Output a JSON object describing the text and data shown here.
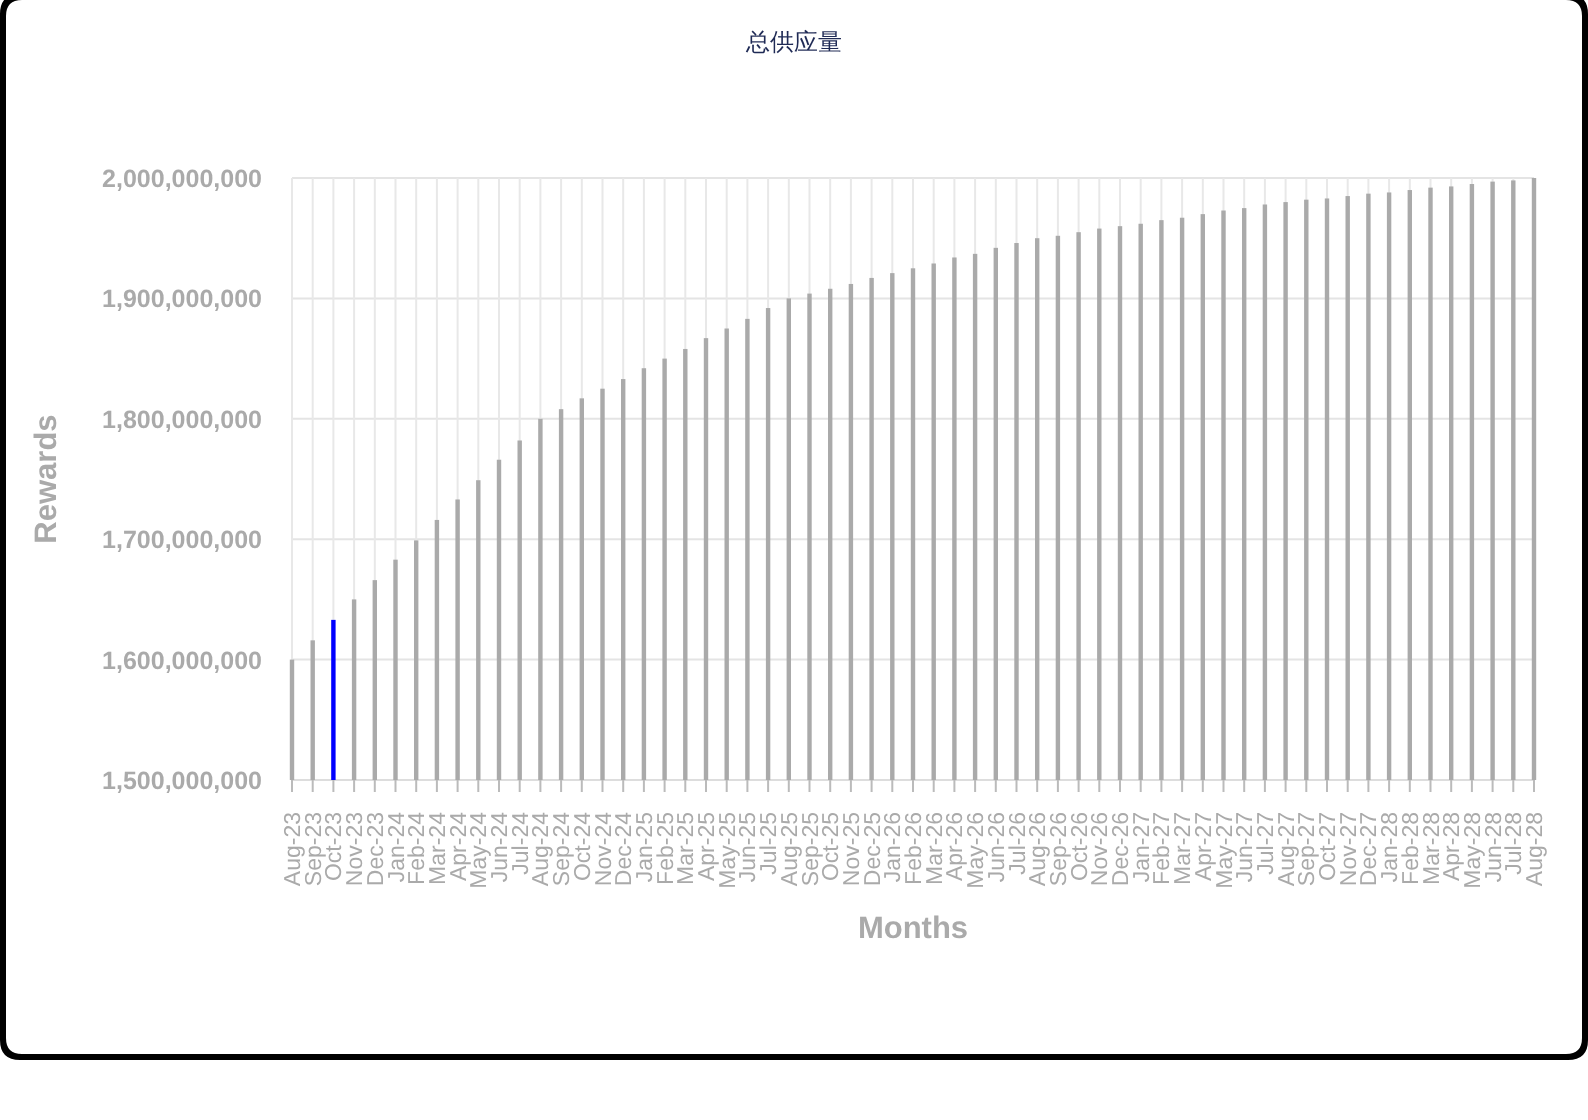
{
  "chart_data": {
    "type": "bar",
    "title": "总供应量",
    "xlabel": "Months",
    "ylabel": "Rewards",
    "categories": [
      "Aug-23",
      "Sep-23",
      "Oct-23",
      "Nov-23",
      "Dec-23",
      "Jan-24",
      "Feb-24",
      "Mar-24",
      "Apr-24",
      "May-24",
      "Jun-24",
      "Jul-24",
      "Aug-24",
      "Sep-24",
      "Oct-24",
      "Nov-24",
      "Dec-24",
      "Jan-25",
      "Feb-25",
      "Mar-25",
      "Apr-25",
      "May-25",
      "Jun-25",
      "Jul-25",
      "Aug-25",
      "Sep-25",
      "Oct-25",
      "Nov-25",
      "Dec-25",
      "Jan-26",
      "Feb-26",
      "Mar-26",
      "Apr-26",
      "May-26",
      "Jun-26",
      "Jul-26",
      "Aug-26",
      "Sep-26",
      "Oct-26",
      "Nov-26",
      "Dec-26",
      "Jan-27",
      "Feb-27",
      "Mar-27",
      "Apr-27",
      "May-27",
      "Jun-27",
      "Jul-27",
      "Aug-27",
      "Sep-27",
      "Oct-27",
      "Nov-27",
      "Dec-27",
      "Jan-28",
      "Feb-28",
      "Mar-28",
      "Apr-28",
      "May-28",
      "Jun-28",
      "Jul-28",
      "Aug-28"
    ],
    "values": [
      1600000000,
      1616000000,
      1633000000,
      1650000000,
      1666000000,
      1683000000,
      1699000000,
      1716000000,
      1733000000,
      1749000000,
      1766000000,
      1782000000,
      1800000000,
      1808000000,
      1817000000,
      1825000000,
      1833000000,
      1842000000,
      1850000000,
      1858000000,
      1867000000,
      1875000000,
      1883000000,
      1892000000,
      1900000000,
      1904000000,
      1908000000,
      1912000000,
      1917000000,
      1921000000,
      1925000000,
      1929000000,
      1934000000,
      1937000000,
      1942000000,
      1946000000,
      1950000000,
      1952000000,
      1955000000,
      1958000000,
      1960000000,
      1962000000,
      1965000000,
      1967000000,
      1970000000,
      1973000000,
      1975000000,
      1978000000,
      1980000000,
      1982000000,
      1983000000,
      1985000000,
      1987000000,
      1988000000,
      1990000000,
      1992000000,
      1993000000,
      1995000000,
      1997000000,
      1998000000,
      2000000000
    ],
    "colors": [
      "#aaaaaa",
      "#aaaaaa",
      "#0000ff",
      "#aaaaaa",
      "#aaaaaa",
      "#aaaaaa",
      "#aaaaaa",
      "#aaaaaa",
      "#aaaaaa",
      "#aaaaaa",
      "#aaaaaa",
      "#aaaaaa",
      "#aaaaaa",
      "#aaaaaa",
      "#aaaaaa",
      "#aaaaaa",
      "#aaaaaa",
      "#aaaaaa",
      "#aaaaaa",
      "#aaaaaa",
      "#aaaaaa",
      "#aaaaaa",
      "#aaaaaa",
      "#aaaaaa",
      "#aaaaaa",
      "#aaaaaa",
      "#aaaaaa",
      "#aaaaaa",
      "#aaaaaa",
      "#aaaaaa",
      "#aaaaaa",
      "#aaaaaa",
      "#aaaaaa",
      "#aaaaaa",
      "#aaaaaa",
      "#aaaaaa",
      "#aaaaaa",
      "#aaaaaa",
      "#aaaaaa",
      "#aaaaaa",
      "#aaaaaa",
      "#aaaaaa",
      "#aaaaaa",
      "#aaaaaa",
      "#aaaaaa",
      "#aaaaaa",
      "#aaaaaa",
      "#aaaaaa",
      "#aaaaaa",
      "#aaaaaa",
      "#aaaaaa",
      "#aaaaaa",
      "#aaaaaa",
      "#aaaaaa",
      "#aaaaaa",
      "#aaaaaa",
      "#aaaaaa",
      "#aaaaaa",
      "#aaaaaa",
      "#aaaaaa",
      "#aaaaaa"
    ],
    "ylim": [
      1500000000,
      2000000000
    ],
    "yticks": [
      {
        "value": 1500000000,
        "label": "1,500,000,000"
      },
      {
        "value": 1600000000,
        "label": "1,600,000,000"
      },
      {
        "value": 1700000000,
        "label": "1,700,000,000"
      },
      {
        "value": 1800000000,
        "label": "1,800,000,000"
      },
      {
        "value": 1900000000,
        "label": "1,900,000,000"
      },
      {
        "value": 2000000000,
        "label": "2,000,000,000"
      }
    ],
    "grid": true
  }
}
